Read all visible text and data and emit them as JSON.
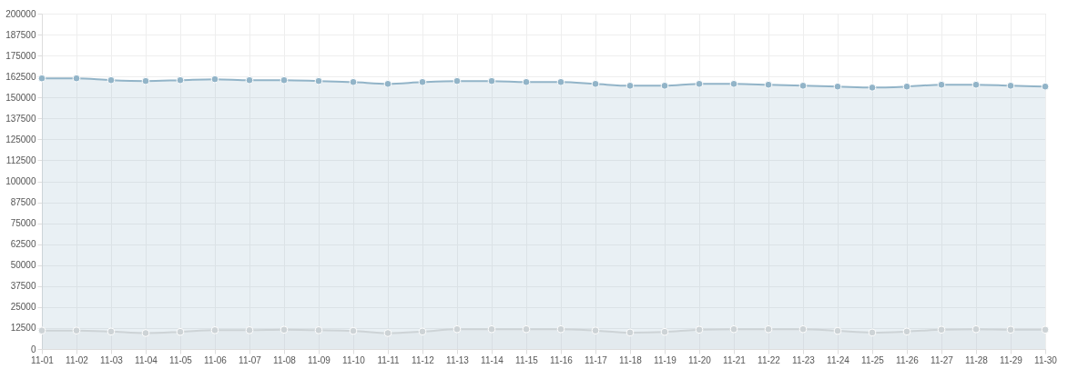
{
  "chart_data": {
    "type": "area",
    "categories": [
      "11-01",
      "11-02",
      "11-03",
      "11-04",
      "11-05",
      "11-06",
      "11-07",
      "11-08",
      "11-09",
      "11-10",
      "11-11",
      "11-12",
      "11-13",
      "11-14",
      "11-15",
      "11-16",
      "11-17",
      "11-18",
      "11-19",
      "11-20",
      "11-21",
      "11-22",
      "11-23",
      "11-24",
      "11-25",
      "11-26",
      "11-27",
      "11-28",
      "11-29",
      "11-30"
    ],
    "series": [
      {
        "color": "#92b4c8",
        "values": [
          161400,
          161400,
          160300,
          159800,
          160300,
          160900,
          160300,
          160300,
          159800,
          159200,
          158100,
          159200,
          159800,
          159800,
          159200,
          159200,
          158100,
          157000,
          157000,
          158100,
          158100,
          157600,
          157000,
          156500,
          155900,
          156500,
          157600,
          157600,
          157000,
          156500
        ]
      },
      {
        "color": "#cdd3d6",
        "values": [
          11000,
          11000,
          10400,
          9500,
          10200,
          11200,
          11200,
          11500,
          11200,
          10800,
          9500,
          10400,
          11800,
          11800,
          11800,
          11800,
          11000,
          9800,
          10200,
          11500,
          11800,
          11800,
          11800,
          10800,
          9800,
          10400,
          11500,
          11800,
          11500,
          11500
        ]
      }
    ],
    "ylim": [
      0,
      200000
    ],
    "yticks": [
      0,
      12500,
      25000,
      37500,
      50000,
      62500,
      75000,
      87500,
      100000,
      112500,
      125000,
      137500,
      150000,
      162500,
      175000,
      187500,
      200000
    ],
    "grid": true,
    "marker": "circle",
    "line_style": "solid"
  }
}
